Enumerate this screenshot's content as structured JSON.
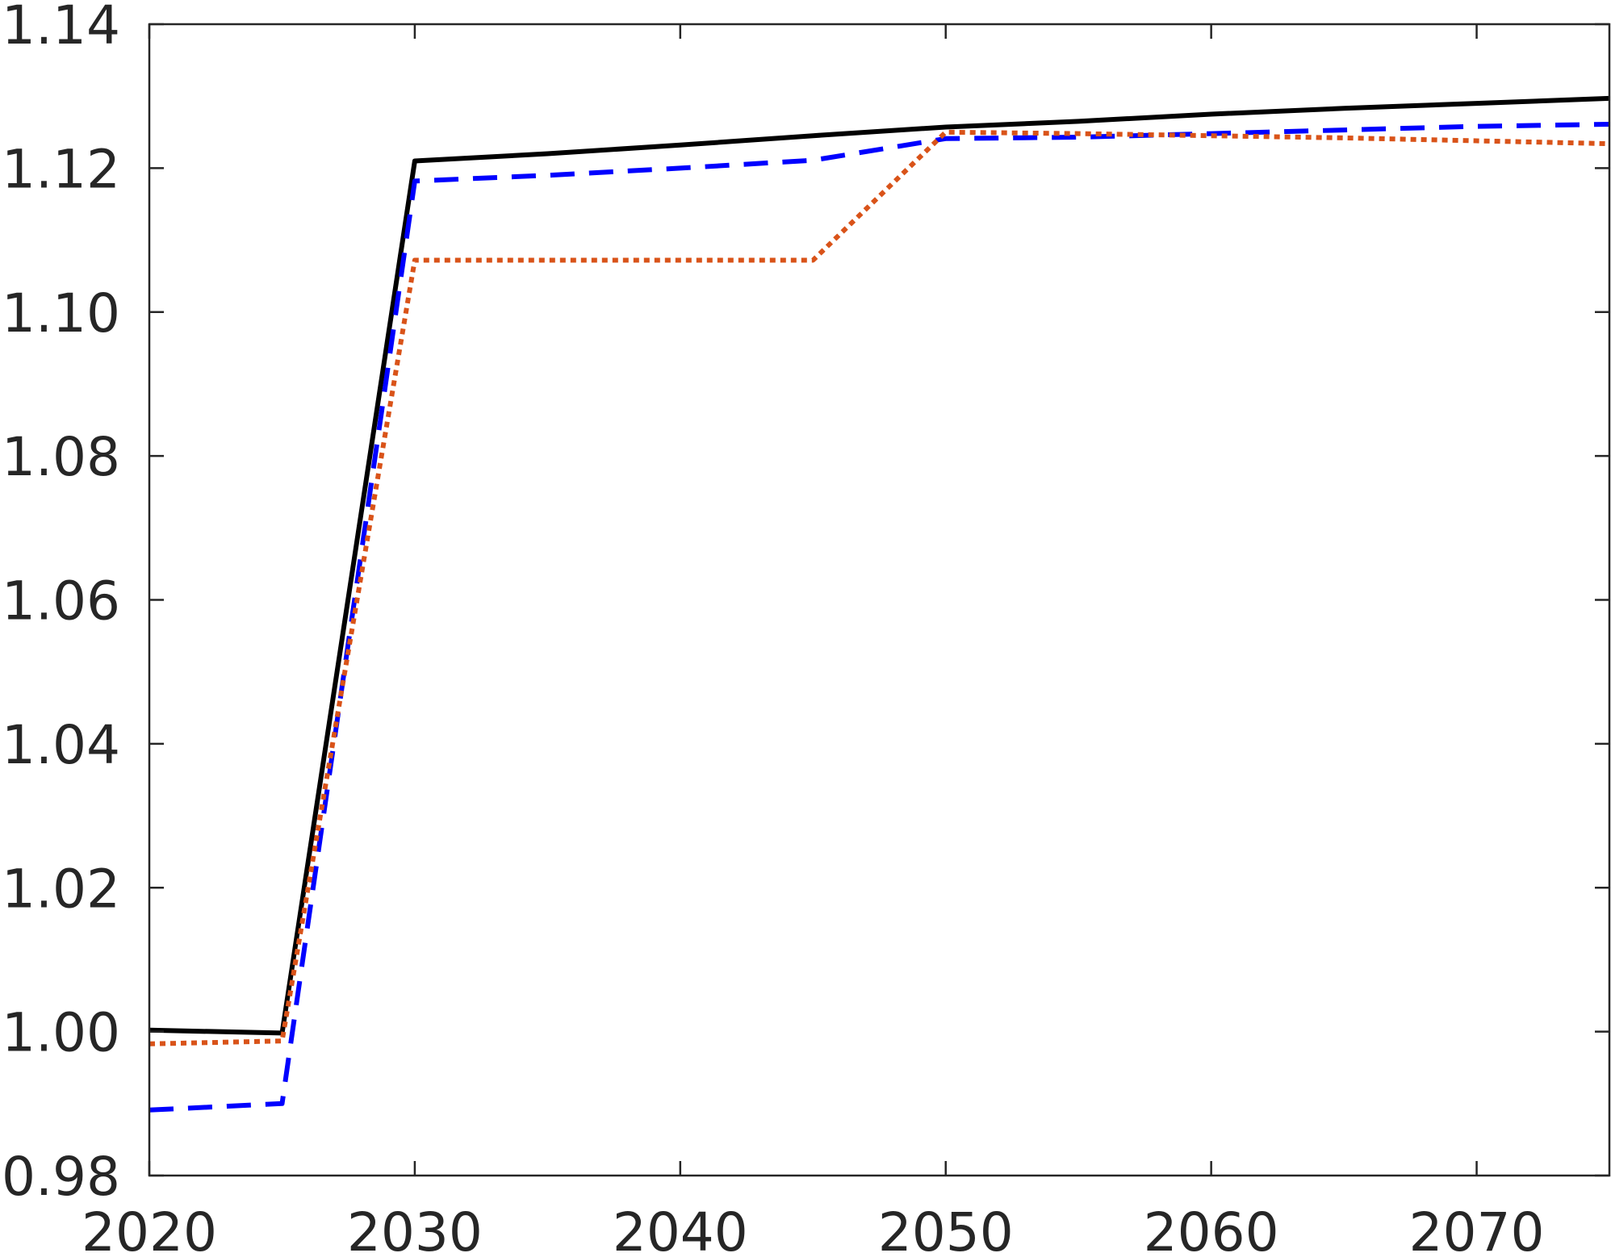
{
  "chart_data": {
    "type": "line",
    "title": "",
    "xlabel": "",
    "ylabel": "",
    "xlim": [
      2020,
      2075
    ],
    "ylim": [
      0.98,
      1.14
    ],
    "xticks": [
      2020,
      2030,
      2040,
      2050,
      2060,
      2070
    ],
    "yticks": [
      0.98,
      1.0,
      1.02,
      1.04,
      1.06,
      1.08,
      1.1,
      1.12,
      1.14
    ],
    "xtick_labels": [
      "2020",
      "2030",
      "2040",
      "2050",
      "2060",
      "2070"
    ],
    "ytick_labels": [
      "0.98",
      "1.00",
      "1.02",
      "1.04",
      "1.06",
      "1.08",
      "1.10",
      "1.12",
      "1.14"
    ],
    "grid": false,
    "legend": "none",
    "series": [
      {
        "color": "#000000",
        "line_style": "solid",
        "x": [
          2020,
          2025,
          2030,
          2035,
          2040,
          2045,
          2050,
          2055,
          2060,
          2065,
          2070,
          2075
        ],
        "y": [
          1.0002,
          0.9998,
          1.121,
          1.122,
          1.1232,
          1.1245,
          1.1257,
          1.1265,
          1.1275,
          1.1283,
          1.129,
          1.1297
        ]
      },
      {
        "color": "#0000ff",
        "line_style": "dashed",
        "x": [
          2020,
          2025,
          2030,
          2035,
          2040,
          2045,
          2050,
          2055,
          2060,
          2065,
          2070,
          2075
        ],
        "y": [
          0.9891,
          0.99,
          1.1182,
          1.119,
          1.12,
          1.1211,
          1.1241,
          1.1243,
          1.1248,
          1.1253,
          1.1258,
          1.1261
        ]
      },
      {
        "color": "#d95319",
        "line_style": "dotted",
        "x": [
          2020,
          2025,
          2030,
          2035,
          2040,
          2045,
          2050,
          2055,
          2060,
          2065,
          2070,
          2075
        ],
        "y": [
          0.9983,
          0.9987,
          1.1072,
          1.1072,
          1.1072,
          1.1072,
          1.125,
          1.1248,
          1.1245,
          1.1242,
          1.1238,
          1.1234
        ]
      }
    ]
  }
}
